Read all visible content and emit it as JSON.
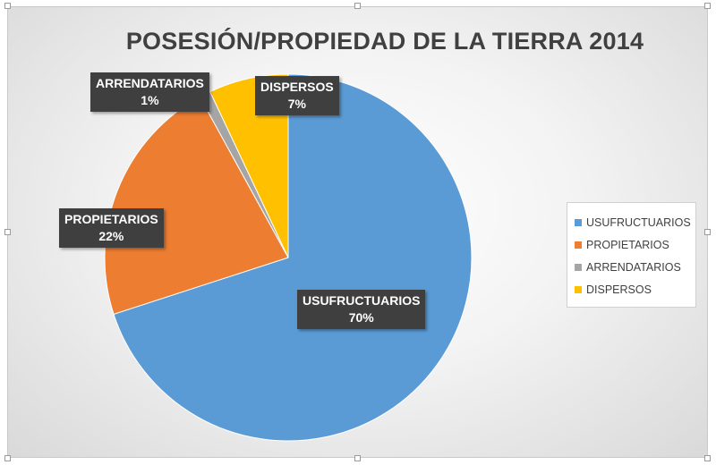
{
  "chart_data": {
    "type": "pie",
    "title": "POSESIÓN/PROPIEDAD DE LA TIERRA 2014",
    "categories": [
      "USUFRUCTUARIOS",
      "PROPIETARIOS",
      "ARRENDATARIOS",
      "DISPERSOS"
    ],
    "values": [
      70,
      22,
      1,
      7
    ],
    "labels": [
      {
        "name": "USUFRUCTUARIOS",
        "pct": "70%"
      },
      {
        "name": "PROPIETARIOS",
        "pct": "22%"
      },
      {
        "name": "ARRENDATARIOS",
        "pct": "1%"
      },
      {
        "name": "DISPERSOS",
        "pct": "7%"
      }
    ],
    "colors": [
      "#5b9bd5",
      "#ed7d31",
      "#a5a5a5",
      "#ffc000"
    ],
    "legend": {
      "position": "right",
      "items": [
        "USUFRUCTUARIOS",
        "PROPIETARIOS",
        "ARRENDATARIOS",
        "DISPERSOS"
      ]
    }
  }
}
